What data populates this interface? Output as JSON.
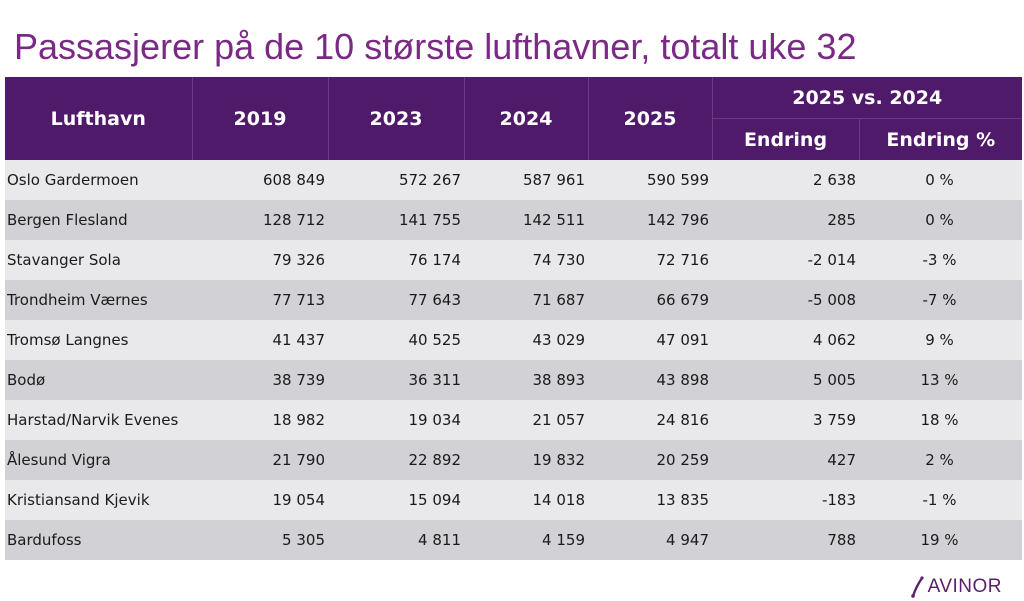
{
  "title": "Passasjerer på de 10 største lufthavner, totalt uke 32",
  "colors": {
    "header_bg": "#4f1a69",
    "title": "#7a2a84",
    "row_light": "#e9e9ec",
    "row_dark": "#d2d2d6"
  },
  "table": {
    "headers": {
      "airport": "Lufthavn",
      "y2019": "2019",
      "y2023": "2023",
      "y2024": "2024",
      "y2025": "2025",
      "group": "2025 vs. 2024",
      "change": "Endring",
      "change_pct": "Endring  %"
    },
    "rows": [
      [
        "Oslo Gardermoen",
        "608 849",
        "572 267",
        "587 961",
        "590 599",
        "2 638",
        "0 %"
      ],
      [
        "Bergen Flesland",
        "128 712",
        "141 755",
        "142 511",
        "142 796",
        "285",
        "0 %"
      ],
      [
        "Stavanger Sola",
        "79 326",
        "76 174",
        "74 730",
        "72 716",
        "-2 014",
        "-3 %"
      ],
      [
        "Trondheim Værnes",
        "77 713",
        "77 643",
        "71 687",
        "66 679",
        "-5 008",
        "-7 %"
      ],
      [
        "Tromsø Langnes",
        "41 437",
        "40 525",
        "43 029",
        "47 091",
        "4 062",
        "9 %"
      ],
      [
        "Bodø",
        "38 739",
        "36 311",
        "38 893",
        "43 898",
        "5 005",
        "13 %"
      ],
      [
        "Harstad/Narvik Evenes",
        "18 982",
        "19 034",
        "21 057",
        "24 816",
        "3 759",
        "18 %"
      ],
      [
        "Ålesund Vigra",
        "21 790",
        "22 892",
        "19 832",
        "20 259",
        "427",
        "2 %"
      ],
      [
        "Kristiansand Kjevik",
        "19 054",
        "15 094",
        "14 018",
        "13 835",
        "-183",
        "-1 %"
      ],
      [
        "Bardufoss",
        "5 305",
        "4 811",
        "4 159",
        "4 947",
        "788",
        "19 %"
      ]
    ]
  },
  "logo": {
    "text": "AVINOR",
    "icon": "avinor-swoosh-icon"
  }
}
